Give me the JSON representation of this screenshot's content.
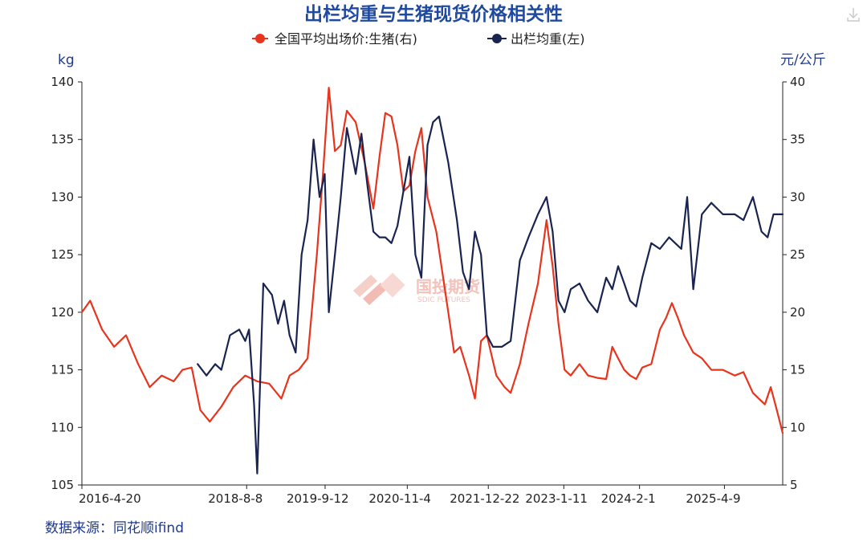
{
  "chart_data": {
    "type": "line",
    "title": "出栏均重与生猪现货价格相关性",
    "left_unit": "kg",
    "right_unit": "元/公斤",
    "y_left_ticks": [
      140,
      135,
      130,
      125,
      120,
      115,
      110,
      105
    ],
    "y_right_ticks": [
      40,
      35,
      30,
      25,
      20,
      15,
      10,
      5
    ],
    "y_left_range": [
      105,
      140
    ],
    "y_right_range": [
      5,
      40
    ],
    "x_range": [
      "2016-04-20",
      "2026-01-31"
    ],
    "x_tick_labels": [
      "2016-4-20",
      "2018-8-8",
      "2019-9-12",
      "2020-11-4",
      "2021-12-22",
      "2023-1-11",
      "2024-2-1",
      "2025-4-9"
    ],
    "x_tick_dates": [
      "2016-04-20",
      "2018-08-08",
      "2019-09-12",
      "2020-11-04",
      "2021-12-22",
      "2023-01-11",
      "2024-02-01",
      "2025-04-09"
    ],
    "legend": [
      {
        "label": "全国平均出场价:生猪(右)",
        "color": "#e8341c"
      },
      {
        "label": "出栏均重(左)",
        "color": "#1a2450"
      }
    ],
    "series": [
      {
        "name": "全国平均出场价:生猪(右)",
        "axis": "right",
        "color": "#e8341c",
        "points": [
          [
            "2016-04-20",
            20.0
          ],
          [
            "2016-06-01",
            21.0
          ],
          [
            "2016-08-01",
            18.5
          ],
          [
            "2016-10-01",
            17.0
          ],
          [
            "2016-12-01",
            18.0
          ],
          [
            "2017-02-01",
            15.5
          ],
          [
            "2017-04-01",
            13.5
          ],
          [
            "2017-06-01",
            14.5
          ],
          [
            "2017-08-01",
            14.0
          ],
          [
            "2017-09-15",
            15.0
          ],
          [
            "2017-11-01",
            15.2
          ],
          [
            "2017-12-15",
            11.5
          ],
          [
            "2018-02-01",
            10.5
          ],
          [
            "2018-04-01",
            11.8
          ],
          [
            "2018-06-01",
            13.5
          ],
          [
            "2018-08-01",
            14.5
          ],
          [
            "2018-10-01",
            14.0
          ],
          [
            "2018-12-01",
            13.8
          ],
          [
            "2019-02-01",
            12.5
          ],
          [
            "2019-03-15",
            14.5
          ],
          [
            "2019-05-01",
            15.0
          ],
          [
            "2019-06-15",
            16.0
          ],
          [
            "2019-08-01",
            25.0
          ],
          [
            "2019-09-01",
            32.0
          ],
          [
            "2019-10-01",
            39.5
          ],
          [
            "2019-11-01",
            34.0
          ],
          [
            "2019-12-01",
            34.5
          ],
          [
            "2020-01-01",
            37.5
          ],
          [
            "2020-02-15",
            36.5
          ],
          [
            "2020-04-01",
            33.0
          ],
          [
            "2020-05-15",
            29.0
          ],
          [
            "2020-06-15",
            33.5
          ],
          [
            "2020-07-15",
            37.3
          ],
          [
            "2020-08-15",
            37.0
          ],
          [
            "2020-09-15",
            34.5
          ],
          [
            "2020-10-15",
            30.5
          ],
          [
            "2020-11-15",
            31.0
          ],
          [
            "2020-12-15",
            34.0
          ],
          [
            "2021-01-15",
            36.0
          ],
          [
            "2021-02-15",
            30.0
          ],
          [
            "2021-04-01",
            27.0
          ],
          [
            "2021-06-01",
            20.0
          ],
          [
            "2021-07-01",
            16.5
          ],
          [
            "2021-08-01",
            17.0
          ],
          [
            "2021-09-15",
            14.5
          ],
          [
            "2021-10-15",
            12.5
          ],
          [
            "2021-11-15",
            17.5
          ],
          [
            "2021-12-15",
            18.0
          ],
          [
            "2022-02-01",
            14.5
          ],
          [
            "2022-03-15",
            13.5
          ],
          [
            "2022-04-15",
            13.0
          ],
          [
            "2022-06-01",
            15.5
          ],
          [
            "2022-07-15",
            19.0
          ],
          [
            "2022-09-01",
            22.5
          ],
          [
            "2022-10-15",
            28.0
          ],
          [
            "2022-11-15",
            24.0
          ],
          [
            "2022-12-15",
            19.0
          ],
          [
            "2023-01-15",
            15.0
          ],
          [
            "2023-02-15",
            14.5
          ],
          [
            "2023-04-01",
            15.5
          ],
          [
            "2023-05-15",
            14.5
          ],
          [
            "2023-07-01",
            14.3
          ],
          [
            "2023-08-15",
            14.2
          ],
          [
            "2023-09-15",
            17.0
          ],
          [
            "2023-10-15",
            16.0
          ],
          [
            "2023-11-15",
            15.0
          ],
          [
            "2023-12-15",
            14.5
          ],
          [
            "2024-01-15",
            14.2
          ],
          [
            "2024-02-15",
            15.2
          ],
          [
            "2024-04-01",
            15.5
          ],
          [
            "2024-05-15",
            18.5
          ],
          [
            "2024-06-15",
            19.5
          ],
          [
            "2024-07-15",
            20.8
          ],
          [
            "2024-08-15",
            19.5
          ],
          [
            "2024-09-15",
            18.0
          ],
          [
            "2024-11-01",
            16.5
          ],
          [
            "2024-12-15",
            16.0
          ],
          [
            "2025-02-01",
            15.0
          ],
          [
            "2025-04-01",
            15.0
          ],
          [
            "2025-06-01",
            14.5
          ],
          [
            "2025-07-15",
            14.8
          ],
          [
            "2025-09-01",
            13.0
          ],
          [
            "2025-10-01",
            12.5
          ],
          [
            "2025-11-01",
            12.0
          ],
          [
            "2025-12-01",
            13.5
          ],
          [
            "2026-01-01",
            11.5
          ],
          [
            "2026-01-31",
            9.5
          ]
        ]
      },
      {
        "name": "出栏均重(左)",
        "axis": "left",
        "color": "#1a2450",
        "points": [
          [
            "2017-12-01",
            115.5
          ],
          [
            "2018-01-15",
            114.5
          ],
          [
            "2018-03-01",
            115.5
          ],
          [
            "2018-04-01",
            115.0
          ],
          [
            "2018-05-15",
            118.0
          ],
          [
            "2018-07-01",
            118.5
          ],
          [
            "2018-08-01",
            117.5
          ],
          [
            "2018-08-20",
            118.5
          ],
          [
            "2018-09-15",
            112.0
          ],
          [
            "2018-10-01",
            106.0
          ],
          [
            "2018-11-01",
            122.5
          ],
          [
            "2018-12-15",
            121.5
          ],
          [
            "2019-01-15",
            119.0
          ],
          [
            "2019-02-15",
            121.0
          ],
          [
            "2019-03-15",
            118.0
          ],
          [
            "2019-04-15",
            116.5
          ],
          [
            "2019-05-15",
            125.0
          ],
          [
            "2019-06-15",
            128.0
          ],
          [
            "2019-07-15",
            135.0
          ],
          [
            "2019-08-15",
            130.0
          ],
          [
            "2019-09-10",
            132.0
          ],
          [
            "2019-10-01",
            120.0
          ],
          [
            "2019-11-01",
            125.0
          ],
          [
            "2019-12-01",
            130.0
          ],
          [
            "2020-01-01",
            136.0
          ],
          [
            "2020-02-15",
            132.0
          ],
          [
            "2020-03-15",
            135.5
          ],
          [
            "2020-04-15",
            131.0
          ],
          [
            "2020-05-15",
            127.0
          ],
          [
            "2020-06-15",
            126.5
          ],
          [
            "2020-07-15",
            126.5
          ],
          [
            "2020-08-15",
            126.0
          ],
          [
            "2020-09-15",
            127.5
          ],
          [
            "2020-10-15",
            130.5
          ],
          [
            "2020-11-15",
            133.5
          ],
          [
            "2020-12-15",
            125.0
          ],
          [
            "2021-01-15",
            123.0
          ],
          [
            "2021-02-15",
            134.5
          ],
          [
            "2021-03-15",
            136.5
          ],
          [
            "2021-04-15",
            137.0
          ],
          [
            "2021-06-01",
            133.0
          ],
          [
            "2021-07-15",
            128.0
          ],
          [
            "2021-08-15",
            123.5
          ],
          [
            "2021-09-15",
            122.0
          ],
          [
            "2021-10-15",
            127.0
          ],
          [
            "2021-11-15",
            125.0
          ],
          [
            "2021-12-15",
            118.0
          ],
          [
            "2022-01-15",
            117.0
          ],
          [
            "2022-03-01",
            117.0
          ],
          [
            "2022-04-15",
            117.5
          ],
          [
            "2022-06-01",
            124.5
          ],
          [
            "2022-07-15",
            126.5
          ],
          [
            "2022-09-01",
            128.5
          ],
          [
            "2022-10-15",
            130.0
          ],
          [
            "2022-11-15",
            127.0
          ],
          [
            "2022-12-15",
            121.0
          ],
          [
            "2023-01-15",
            120.0
          ],
          [
            "2023-02-15",
            122.0
          ],
          [
            "2023-04-01",
            122.5
          ],
          [
            "2023-05-15",
            121.0
          ],
          [
            "2023-07-01",
            120.0
          ],
          [
            "2023-08-15",
            123.0
          ],
          [
            "2023-09-15",
            122.0
          ],
          [
            "2023-10-15",
            124.0
          ],
          [
            "2023-11-15",
            122.5
          ],
          [
            "2023-12-15",
            121.0
          ],
          [
            "2024-01-15",
            120.5
          ],
          [
            "2024-02-15",
            123.0
          ],
          [
            "2024-04-01",
            126.0
          ],
          [
            "2024-05-15",
            125.5
          ],
          [
            "2024-07-01",
            126.5
          ],
          [
            "2024-08-01",
            126.0
          ],
          [
            "2024-09-01",
            125.5
          ],
          [
            "2024-10-01",
            130.0
          ],
          [
            "2024-11-01",
            122.0
          ],
          [
            "2024-12-15",
            128.5
          ],
          [
            "2025-02-01",
            129.5
          ],
          [
            "2025-04-01",
            128.5
          ],
          [
            "2025-06-01",
            128.5
          ],
          [
            "2025-07-15",
            128.0
          ],
          [
            "2025-09-01",
            130.0
          ],
          [
            "2025-10-15",
            127.0
          ],
          [
            "2025-11-15",
            126.5
          ],
          [
            "2025-12-15",
            128.5
          ],
          [
            "2026-01-31",
            128.5
          ]
        ]
      }
    ],
    "grid": false,
    "legend_position": "top-center",
    "watermark": "国投期货",
    "watermark_sub": "SDIC FUTURES",
    "source_note": "数据来源：同花顺ifind"
  }
}
